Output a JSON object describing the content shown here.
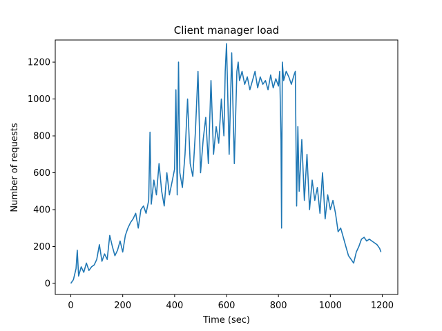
{
  "chart_data": {
    "type": "line",
    "title": "Client manager load",
    "xlabel": "Time (sec)",
    "ylabel": "Number of requests",
    "xlim": [
      -60,
      1260
    ],
    "ylim": [
      -60,
      1320
    ],
    "xticks": [
      0,
      200,
      400,
      600,
      800,
      1000,
      1200
    ],
    "yticks": [
      0,
      200,
      400,
      600,
      800,
      1000,
      1200
    ],
    "grid": false,
    "legend": "none",
    "series": [
      {
        "color": "#1f77b4",
        "x": [
          0,
          10,
          20,
          25,
          30,
          40,
          50,
          60,
          70,
          80,
          90,
          100,
          110,
          120,
          130,
          140,
          150,
          160,
          170,
          180,
          190,
          200,
          210,
          220,
          230,
          240,
          250,
          260,
          270,
          280,
          290,
          300,
          305,
          310,
          320,
          330,
          340,
          350,
          360,
          370,
          380,
          390,
          400,
          405,
          410,
          415,
          420,
          430,
          440,
          450,
          460,
          470,
          480,
          490,
          500,
          510,
          520,
          530,
          540,
          550,
          560,
          570,
          580,
          590,
          595,
          600,
          610,
          620,
          630,
          640,
          645,
          650,
          660,
          670,
          680,
          690,
          700,
          710,
          720,
          730,
          740,
          750,
          760,
          770,
          780,
          790,
          800,
          805,
          810,
          812,
          815,
          820,
          830,
          840,
          850,
          860,
          865,
          870,
          875,
          880,
          890,
          900,
          910,
          920,
          930,
          940,
          950,
          960,
          970,
          980,
          990,
          1000,
          1010,
          1020,
          1030,
          1040,
          1050,
          1060,
          1070,
          1080,
          1090,
          1100,
          1110,
          1120,
          1130,
          1140,
          1150,
          1160,
          1170,
          1180,
          1190,
          1195
        ],
        "y": [
          0,
          20,
          80,
          180,
          40,
          90,
          60,
          110,
          70,
          90,
          100,
          130,
          210,
          120,
          160,
          130,
          260,
          200,
          150,
          180,
          230,
          170,
          260,
          300,
          330,
          350,
          380,
          300,
          400,
          420,
          380,
          450,
          820,
          430,
          560,
          480,
          650,
          500,
          420,
          600,
          480,
          550,
          620,
          1050,
          480,
          1200,
          600,
          520,
          700,
          1000,
          650,
          580,
          820,
          1150,
          600,
          780,
          900,
          650,
          1100,
          700,
          850,
          760,
          1000,
          800,
          1150,
          1300,
          700,
          1250,
          650,
          1150,
          1200,
          1100,
          1150,
          1080,
          1120,
          1050,
          1100,
          1150,
          1060,
          1120,
          1080,
          1100,
          1050,
          1130,
          1060,
          1110,
          1070,
          1150,
          780,
          300,
          1200,
          1100,
          1150,
          1120,
          1080,
          1130,
          1150,
          420,
          850,
          500,
          780,
          450,
          700,
          400,
          560,
          450,
          520,
          380,
          600,
          350,
          480,
          400,
          450,
          380,
          280,
          300,
          250,
          200,
          150,
          130,
          110,
          170,
          200,
          240,
          250,
          230,
          240,
          230,
          220,
          210,
          190,
          170
        ]
      }
    ]
  }
}
